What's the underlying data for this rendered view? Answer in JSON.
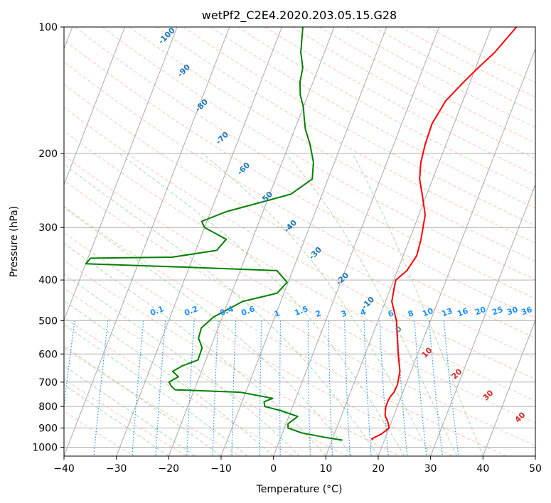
{
  "chart_data": {
    "type": "line",
    "title": "wetPf2_C2E4.2020.203.05.15.G28",
    "xlabel": "Temperature (°C)",
    "ylabel": "Pressure (hPa)",
    "xlim": [
      -40,
      50
    ],
    "ylim": [
      1050,
      100
    ],
    "y_scale": "log",
    "skew": "skew-T",
    "x_ticks": [
      -40,
      -30,
      -20,
      -10,
      0,
      10,
      20,
      30,
      40,
      50
    ],
    "y_ticks": [
      1000,
      900,
      800,
      700,
      600,
      500,
      400,
      300,
      200,
      100
    ],
    "grid": true,
    "colors": {
      "temperature": "#ff0000",
      "dewpoint": "#008000",
      "isotherm": "#a9a9a9",
      "dry_adiabat": "#ff7f50",
      "moist_adiabat": "#2ca02c",
      "mixing_ratio": "#1e90ff",
      "labels_dry": "#1f77b4",
      "labels_mix": "#1e90ff",
      "labels_moist": "#d62728"
    },
    "series": [
      {
        "name": "Temperature",
        "points": [
          [
            17.8,
            962
          ],
          [
            17.5,
            955
          ],
          [
            19.0,
            930
          ],
          [
            20.0,
            900
          ],
          [
            19.3,
            870
          ],
          [
            18.3,
            840
          ],
          [
            17.8,
            800
          ],
          [
            17.8,
            780
          ],
          [
            17.9,
            760
          ],
          [
            18.3,
            740
          ],
          [
            18.4,
            710
          ],
          [
            17.9,
            660
          ],
          [
            16.3,
            600
          ],
          [
            13.5,
            500
          ],
          [
            11.2,
            450
          ],
          [
            10.7,
            420
          ],
          [
            10.4,
            400
          ],
          [
            11.8,
            380
          ],
          [
            12.6,
            350
          ],
          [
            12.2,
            320
          ],
          [
            11.2,
            280
          ],
          [
            9.1,
            250
          ],
          [
            7.5,
            230
          ],
          [
            6.5,
            210
          ],
          [
            6.0,
            190
          ],
          [
            5.8,
            170
          ],
          [
            6.7,
            150
          ],
          [
            8.8,
            135
          ],
          [
            10.5,
            125
          ],
          [
            12.5,
            115
          ],
          [
            14.8,
            100
          ]
        ]
      },
      {
        "name": "Dewpoint",
        "points": [
          [
            12.0,
            962
          ],
          [
            9.0,
            950
          ],
          [
            3.7,
            925
          ],
          [
            0.7,
            900
          ],
          [
            0.4,
            880
          ],
          [
            1.7,
            845
          ],
          [
            -1.7,
            820
          ],
          [
            -5.3,
            800
          ],
          [
            -5.8,
            780
          ],
          [
            -4.4,
            765
          ],
          [
            -11.0,
            740
          ],
          [
            -23.7,
            730
          ],
          [
            -24.7,
            715
          ],
          [
            -25.4,
            700
          ],
          [
            -24.0,
            680
          ],
          [
            -25.5,
            660
          ],
          [
            -24.0,
            640
          ],
          [
            -21.5,
            620
          ],
          [
            -21.6,
            580
          ],
          [
            -23.0,
            550
          ],
          [
            -23.2,
            520
          ],
          [
            -21.7,
            490
          ],
          [
            -17.3,
            450
          ],
          [
            -11.3,
            430
          ],
          [
            -10.2,
            405
          ],
          [
            -13.0,
            380
          ],
          [
            -30.4,
            373
          ],
          [
            -50.0,
            366
          ],
          [
            -49.5,
            355
          ],
          [
            -34.0,
            353
          ],
          [
            -26.0,
            340
          ],
          [
            -25.0,
            320
          ],
          [
            -30.0,
            300
          ],
          [
            -31.0,
            290
          ],
          [
            -27.0,
            275
          ],
          [
            -16.0,
            250
          ],
          [
            -13.0,
            230
          ],
          [
            -14.0,
            210
          ],
          [
            -16.0,
            190
          ],
          [
            -18.0,
            175
          ],
          [
            -19.0,
            165
          ],
          [
            -20.0,
            155
          ],
          [
            -21.5,
            145
          ],
          [
            -22.5,
            135
          ],
          [
            -23.0,
            125
          ],
          [
            -24.5,
            115
          ],
          [
            -26.0,
            100
          ]
        ]
      }
    ],
    "dry_adiabat_labels": [
      "-100",
      "-90",
      "-80",
      "-70",
      "-60",
      "-50",
      "-40",
      "-30",
      "-20",
      "-10"
    ],
    "mixing_ratio_labels": [
      "0.1",
      "0.2",
      "0.4",
      "0.6",
      "1",
      "1.5",
      "2",
      "3",
      "4",
      "6",
      "8",
      "10",
      "13",
      "16",
      "20",
      "25",
      "30",
      "36"
    ],
    "moist_adiabat_labels": [
      "0",
      "10",
      "20",
      "30",
      "40"
    ]
  }
}
